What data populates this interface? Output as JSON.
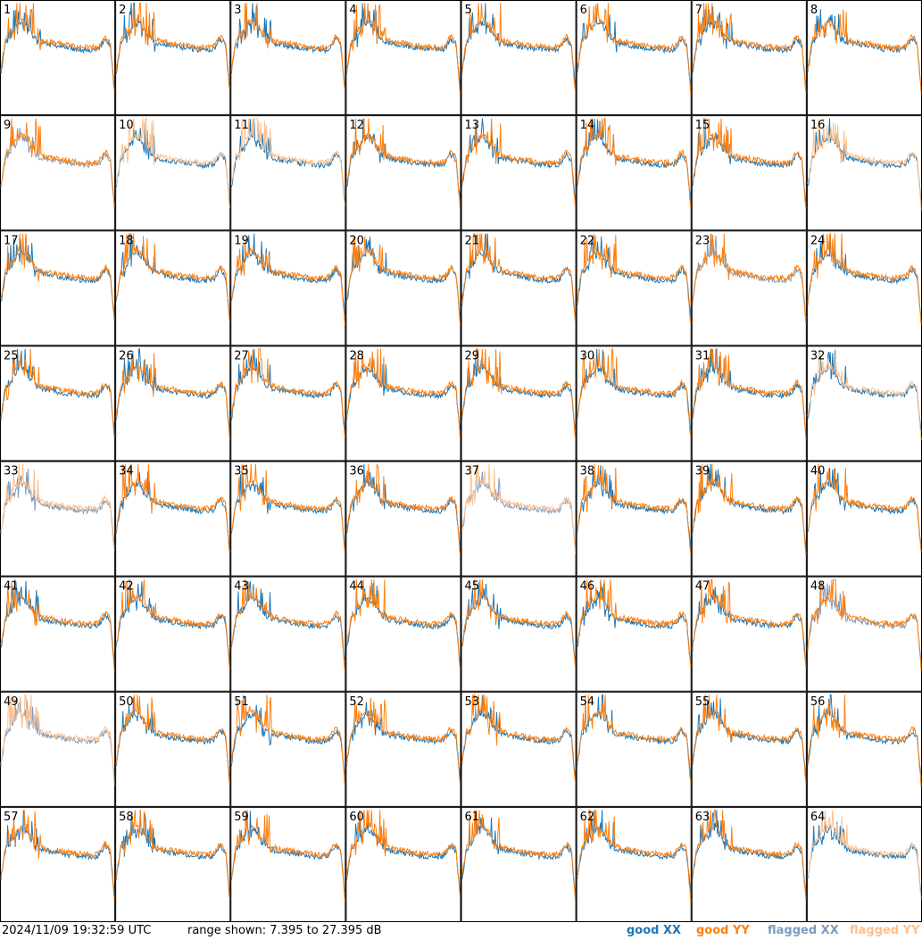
{
  "chart_data": {
    "type": "line",
    "layout": "small-multiples-8x8",
    "timestamp": "2024/11/09 19:32:59 UTC",
    "range_label": "range shown: 7.395 to 27.395 dB",
    "ylim": [
      7.395,
      27.395
    ],
    "colors": {
      "good_xx": "#1f77b4",
      "good_yy": "#ff7f0e",
      "flagged_xx": "#7b9cbf",
      "flagged_yy": "#ffbf8c"
    },
    "legend": [
      {
        "label": "good XX",
        "key": "good_xx"
      },
      {
        "label": "good YY",
        "key": "good_yy"
      },
      {
        "label": "flagged XX",
        "key": "flagged_xx"
      },
      {
        "label": "flagged YY",
        "key": "flagged_yy"
      }
    ],
    "panels": [
      {
        "id": "1",
        "xx": "good",
        "yy": "good"
      },
      {
        "id": "2",
        "xx": "good",
        "yy": "good"
      },
      {
        "id": "3",
        "xx": "good",
        "yy": "good"
      },
      {
        "id": "4",
        "xx": "good",
        "yy": "good"
      },
      {
        "id": "5",
        "xx": "good",
        "yy": "good"
      },
      {
        "id": "6",
        "xx": "good",
        "yy": "good"
      },
      {
        "id": "7",
        "xx": "good",
        "yy": "good"
      },
      {
        "id": "8",
        "xx": "good",
        "yy": "good"
      },
      {
        "id": "9",
        "xx": "flagged",
        "yy": "good"
      },
      {
        "id": "10",
        "xx": "good",
        "yy": "flagged"
      },
      {
        "id": "11",
        "xx": "good",
        "yy": "flagged"
      },
      {
        "id": "12",
        "xx": "good",
        "yy": "good"
      },
      {
        "id": "13",
        "xx": "good",
        "yy": "good"
      },
      {
        "id": "14",
        "xx": "good",
        "yy": "good"
      },
      {
        "id": "15",
        "xx": "good",
        "yy": "good"
      },
      {
        "id": "16",
        "xx": "good",
        "yy": "flagged"
      },
      {
        "id": "17",
        "xx": "good",
        "yy": "good"
      },
      {
        "id": "18",
        "xx": "good",
        "yy": "good"
      },
      {
        "id": "19",
        "xx": "good",
        "yy": "good"
      },
      {
        "id": "20",
        "xx": "good",
        "yy": "good"
      },
      {
        "id": "21",
        "xx": "good",
        "yy": "good"
      },
      {
        "id": "22",
        "xx": "good",
        "yy": "good"
      },
      {
        "id": "23",
        "xx": "flagged",
        "yy": "good"
      },
      {
        "id": "24",
        "xx": "good",
        "yy": "good"
      },
      {
        "id": "25",
        "xx": "good",
        "yy": "good"
      },
      {
        "id": "26",
        "xx": "good",
        "yy": "good"
      },
      {
        "id": "27",
        "xx": "good",
        "yy": "good"
      },
      {
        "id": "28",
        "xx": "good",
        "yy": "good"
      },
      {
        "id": "29",
        "xx": "good",
        "yy": "good"
      },
      {
        "id": "30",
        "xx": "good",
        "yy": "good"
      },
      {
        "id": "31",
        "xx": "good",
        "yy": "good"
      },
      {
        "id": "32",
        "xx": "good",
        "yy": "flagged"
      },
      {
        "id": "33",
        "xx": "flagged",
        "yy": "flagged"
      },
      {
        "id": "34",
        "xx": "good",
        "yy": "good"
      },
      {
        "id": "35",
        "xx": "good",
        "yy": "good"
      },
      {
        "id": "36",
        "xx": "good",
        "yy": "good"
      },
      {
        "id": "37",
        "xx": "flagged",
        "yy": "flagged"
      },
      {
        "id": "38",
        "xx": "good",
        "yy": "good"
      },
      {
        "id": "39",
        "xx": "good",
        "yy": "good"
      },
      {
        "id": "40",
        "xx": "good",
        "yy": "good"
      },
      {
        "id": "41",
        "xx": "good",
        "yy": "good"
      },
      {
        "id": "42",
        "xx": "good",
        "yy": "good"
      },
      {
        "id": "43",
        "xx": "good",
        "yy": "good"
      },
      {
        "id": "44",
        "xx": "good",
        "yy": "good"
      },
      {
        "id": "45",
        "xx": "good",
        "yy": "good"
      },
      {
        "id": "46",
        "xx": "good",
        "yy": "good"
      },
      {
        "id": "47",
        "xx": "good",
        "yy": "good"
      },
      {
        "id": "48",
        "xx": "flagged",
        "yy": "good"
      },
      {
        "id": "49",
        "xx": "flagged",
        "yy": "flagged"
      },
      {
        "id": "50",
        "xx": "good",
        "yy": "good"
      },
      {
        "id": "51",
        "xx": "good",
        "yy": "good"
      },
      {
        "id": "52",
        "xx": "good",
        "yy": "good"
      },
      {
        "id": "53",
        "xx": "good",
        "yy": "good"
      },
      {
        "id": "54",
        "xx": "good",
        "yy": "good"
      },
      {
        "id": "55",
        "xx": "good",
        "yy": "good"
      },
      {
        "id": "56",
        "xx": "good",
        "yy": "good"
      },
      {
        "id": "57",
        "xx": "good",
        "yy": "good"
      },
      {
        "id": "58",
        "xx": "good",
        "yy": "good"
      },
      {
        "id": "59",
        "xx": "good",
        "yy": "good"
      },
      {
        "id": "60",
        "xx": "good",
        "yy": "good"
      },
      {
        "id": "61",
        "xx": "good",
        "yy": "good"
      },
      {
        "id": "62",
        "xx": "good",
        "yy": "good"
      },
      {
        "id": "63",
        "xx": "good",
        "yy": "good"
      },
      {
        "id": "64",
        "xx": "good",
        "yy": "flagged"
      }
    ]
  }
}
